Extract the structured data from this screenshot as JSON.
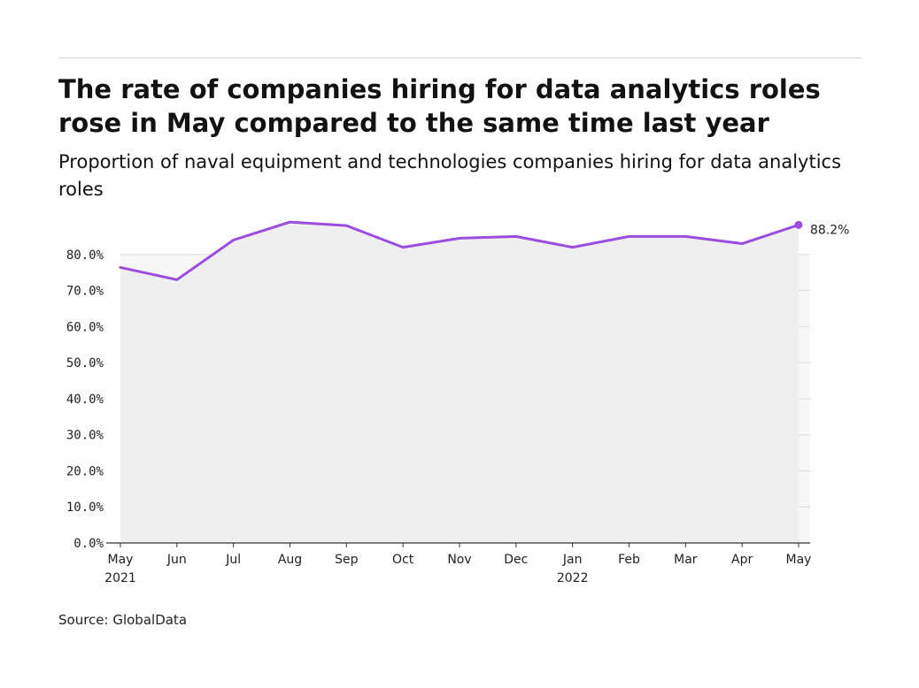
{
  "title": "The rate of companies hiring for data analytics roles rose in May compared to the same time last year",
  "subtitle": "Proportion of naval equipment and technologies companies hiring for data analytics roles",
  "source": "Source: GlobalData",
  "colors": {
    "line": "#9b4de0",
    "area": "#efefef",
    "grid": "#dcdcdc",
    "axis": "#333333"
  },
  "chart_data": {
    "type": "area",
    "x": [
      "May 2021",
      "Jun 2021",
      "Jul 2021",
      "Aug 2021",
      "Sep 2021",
      "Oct 2021",
      "Nov 2021",
      "Dec 2021",
      "Jan 2022",
      "Feb 2022",
      "Mar 2022",
      "Apr 2022",
      "May 2022"
    ],
    "x_tick_labels": [
      {
        "line1": "May",
        "line2": "2021"
      },
      {
        "line1": "Jun",
        "line2": ""
      },
      {
        "line1": "Jul",
        "line2": ""
      },
      {
        "line1": "Aug",
        "line2": ""
      },
      {
        "line1": "Sep",
        "line2": ""
      },
      {
        "line1": "Oct",
        "line2": ""
      },
      {
        "line1": "Nov",
        "line2": ""
      },
      {
        "line1": "Dec",
        "line2": ""
      },
      {
        "line1": "Jan",
        "line2": "2022"
      },
      {
        "line1": "Feb",
        "line2": ""
      },
      {
        "line1": "Mar",
        "line2": ""
      },
      {
        "line1": "Apr",
        "line2": ""
      },
      {
        "line1": "May",
        "line2": ""
      }
    ],
    "values": [
      76.4,
      73.0,
      84.0,
      89.0,
      88.0,
      82.0,
      84.5,
      85.0,
      82.0,
      85.0,
      85.0,
      83.0,
      88.2
    ],
    "ylim": [
      0,
      90
    ],
    "y_ticks": [
      0,
      10,
      20,
      30,
      40,
      50,
      60,
      70,
      80
    ],
    "y_tick_labels": [
      "0.0%",
      "10.0%",
      "20.0%",
      "30.0%",
      "40.0%",
      "50.0%",
      "60.0%",
      "70.0%",
      "80.0%"
    ],
    "end_label": "88.2%",
    "grid": true,
    "legend": "none"
  }
}
